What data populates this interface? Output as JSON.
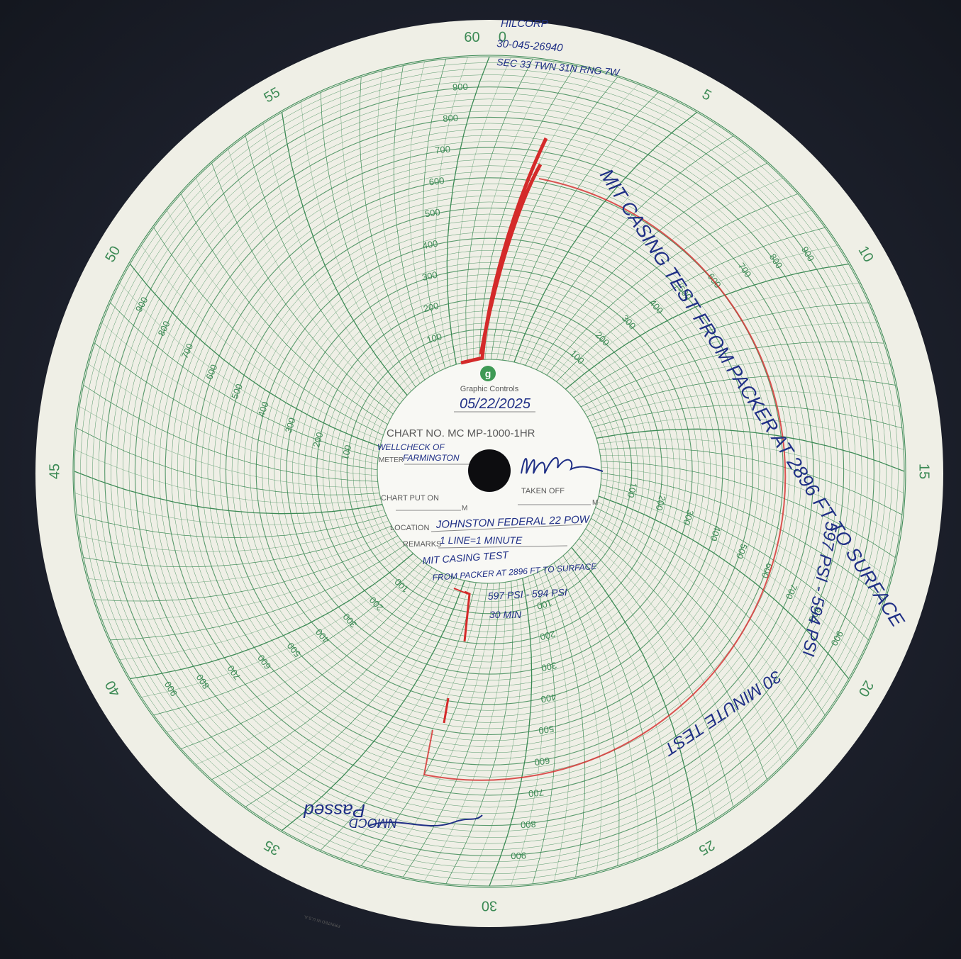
{
  "header": {
    "handwritten": [
      "HILCORP",
      "30-045-26940",
      "SEC 33 TWN 31N RNG 7W"
    ]
  },
  "dial": {
    "top_label": "60",
    "minute_range": [
      0,
      60
    ],
    "minute_labels": [
      0,
      5,
      10,
      15,
      20,
      25,
      30,
      35,
      40,
      45,
      50,
      55
    ],
    "pressure_range": [
      0,
      1000
    ],
    "pressure_labels": [
      100,
      200,
      300,
      400,
      500,
      600,
      700,
      800,
      900
    ]
  },
  "center": {
    "logo": "g",
    "brand": "Graphic Controls",
    "date": "05/22/2025",
    "chart_no": "CHART NO. MC MP-1000-1HR",
    "meter_label": "METER",
    "meter_value": [
      "WELLCHECK OF",
      "FARMINGTON"
    ],
    "put_on_label": "CHART PUT ON",
    "taken_off_label": "TAKEN OFF",
    "m1": "M",
    "m2": "M",
    "location_label": "LOCATION",
    "location_value": "JOHNSTON FEDERAL 22 POW",
    "remarks_label": "REMARKS",
    "remarks_value": "1 LINE=1 MINUTE",
    "notes": [
      "MIT CASING TEST",
      "FROM PACKER AT 2896 FT TO SURFACE",
      "597 PSI - 594 PSI",
      "30 MIN"
    ]
  },
  "annotations": {
    "right_note": "MIT CASING TEST FROM PACKER AT 2896 FT TO SURFACE",
    "right_psi": "597 PSI - 594 PSI",
    "right_duration": "30 MINUTE TEST",
    "result": "Passed",
    "agency": "NMOCD",
    "printer": "PRINTED IN U.S.A."
  }
}
